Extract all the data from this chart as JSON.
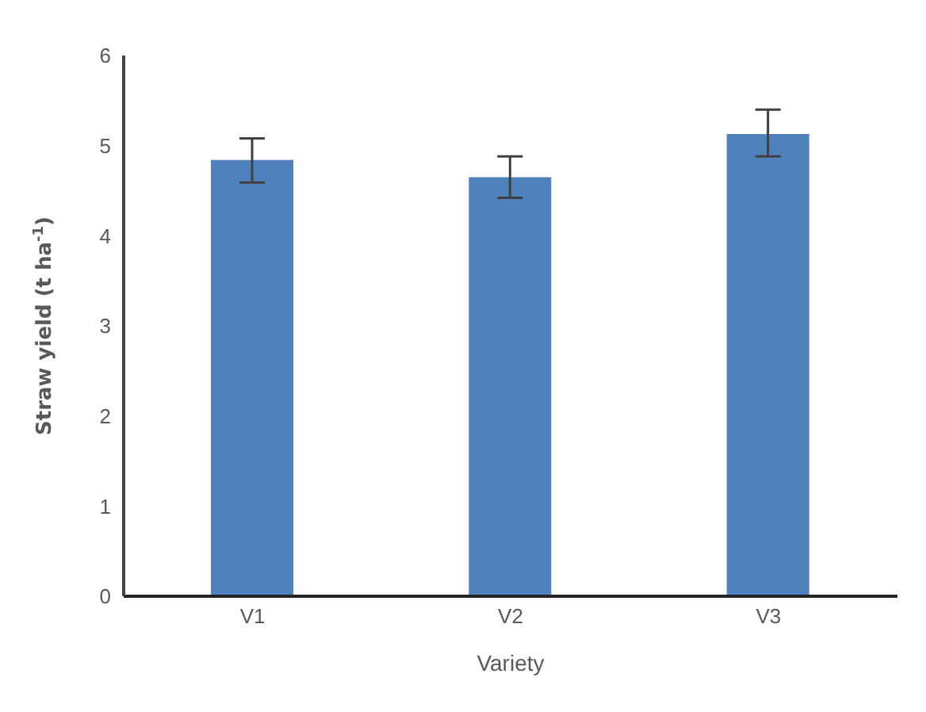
{
  "chart_data": {
    "type": "bar",
    "categories": [
      "V1",
      "V2",
      "V3"
    ],
    "values": [
      4.84,
      4.65,
      5.13
    ],
    "errors": [
      [
        4.59,
        5.08
      ],
      [
        4.42,
        4.88
      ],
      [
        4.88,
        5.4
      ]
    ],
    "color": "#4f81bd",
    "xlabel": "Variety",
    "ylabel": "Straw yield (t ha$^{-1}$)",
    "ylim": [
      0,
      6
    ],
    "yticks": [
      0,
      1,
      2,
      3,
      4,
      5,
      6
    ],
    "grid": false,
    "legend": false
  }
}
